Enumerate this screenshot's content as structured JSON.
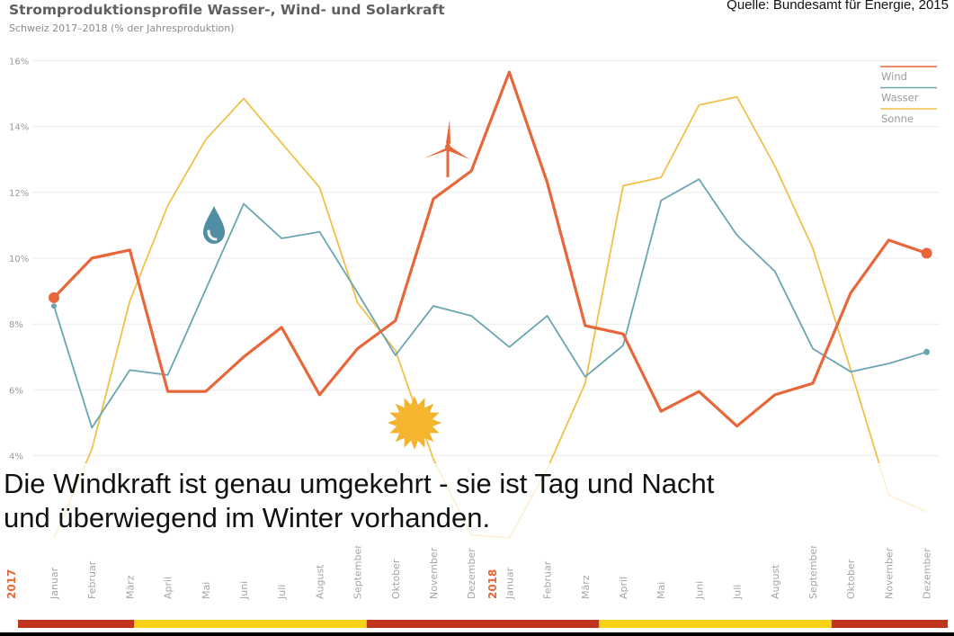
{
  "header": {
    "title": "Stromproduktionsprofile Wasser-, Wind- und Solarkraft",
    "subtitle": "Schweiz 2017–2018 (% der Jahresproduktion)",
    "source": "Quelle: Bundesamt für Energie, 2015"
  },
  "caption": {
    "line1": "Die Windkraft ist genau umgekehrt - sie ist Tag und Nacht",
    "line2": "und überwiegend im Winter vorhanden."
  },
  "chart_data": {
    "type": "line",
    "ylim": [
      3.5,
      16
    ],
    "ytick_values": [
      4,
      6,
      8,
      10,
      12,
      14,
      16
    ],
    "ytick_labels": [
      "4%",
      "6%",
      "8%",
      "10%",
      "12%",
      "14%",
      "16%"
    ],
    "grid": true,
    "legend_position": "top-right",
    "year_labels": [
      "2017",
      "2018"
    ],
    "x": [
      "Januar",
      "Februar",
      "März",
      "April",
      "Mai",
      "Juni",
      "Juli",
      "August",
      "September",
      "Oktober",
      "November",
      "Dezember",
      "Januar",
      "Februar",
      "März",
      "April",
      "Mai",
      "Juni",
      "Juli",
      "August",
      "September",
      "Oktober",
      "November",
      "Dezember"
    ],
    "series": [
      {
        "name": "Wind",
        "color": "#e8673a",
        "values": [
          8.8,
          10.0,
          10.25,
          5.95,
          5.95,
          7.0,
          7.9,
          5.85,
          7.25,
          8.1,
          11.8,
          12.65,
          15.65,
          12.3,
          7.95,
          7.7,
          5.35,
          5.95,
          4.9,
          5.85,
          6.2,
          8.95,
          10.55,
          10.15
        ]
      },
      {
        "name": "Wasser",
        "color": "#6aa6b0",
        "values": [
          8.55,
          4.85,
          6.6,
          6.45,
          9.05,
          11.65,
          10.6,
          10.8,
          8.95,
          7.05,
          8.55,
          8.25,
          7.3,
          8.25,
          6.4,
          7.35,
          11.75,
          12.4,
          10.7,
          9.6,
          7.25,
          6.55,
          6.8,
          7.15
        ]
      },
      {
        "name": "Sonne",
        "color": "#f0c04a",
        "values": [
          1.5,
          4.2,
          8.7,
          11.6,
          13.6,
          14.85,
          13.5,
          12.15,
          8.65,
          7.2,
          3.9,
          1.6,
          1.5,
          3.6,
          6.2,
          12.2,
          12.45,
          14.65,
          14.9,
          12.8,
          10.3,
          6.6,
          2.8,
          2.3
        ]
      }
    ],
    "icons": [
      "water-drop-icon",
      "wind-turbine-icon",
      "sun-icon"
    ],
    "season_bar": [
      {
        "color": "#c0341d",
        "span": [
          0,
          3
        ]
      },
      {
        "color": "#f6d318",
        "span": [
          3,
          9
        ]
      },
      {
        "color": "#c0341d",
        "span": [
          9,
          15
        ]
      },
      {
        "color": "#f6d318",
        "span": [
          15,
          21
        ]
      },
      {
        "color": "#c0341d",
        "span": [
          21,
          24
        ]
      }
    ]
  }
}
